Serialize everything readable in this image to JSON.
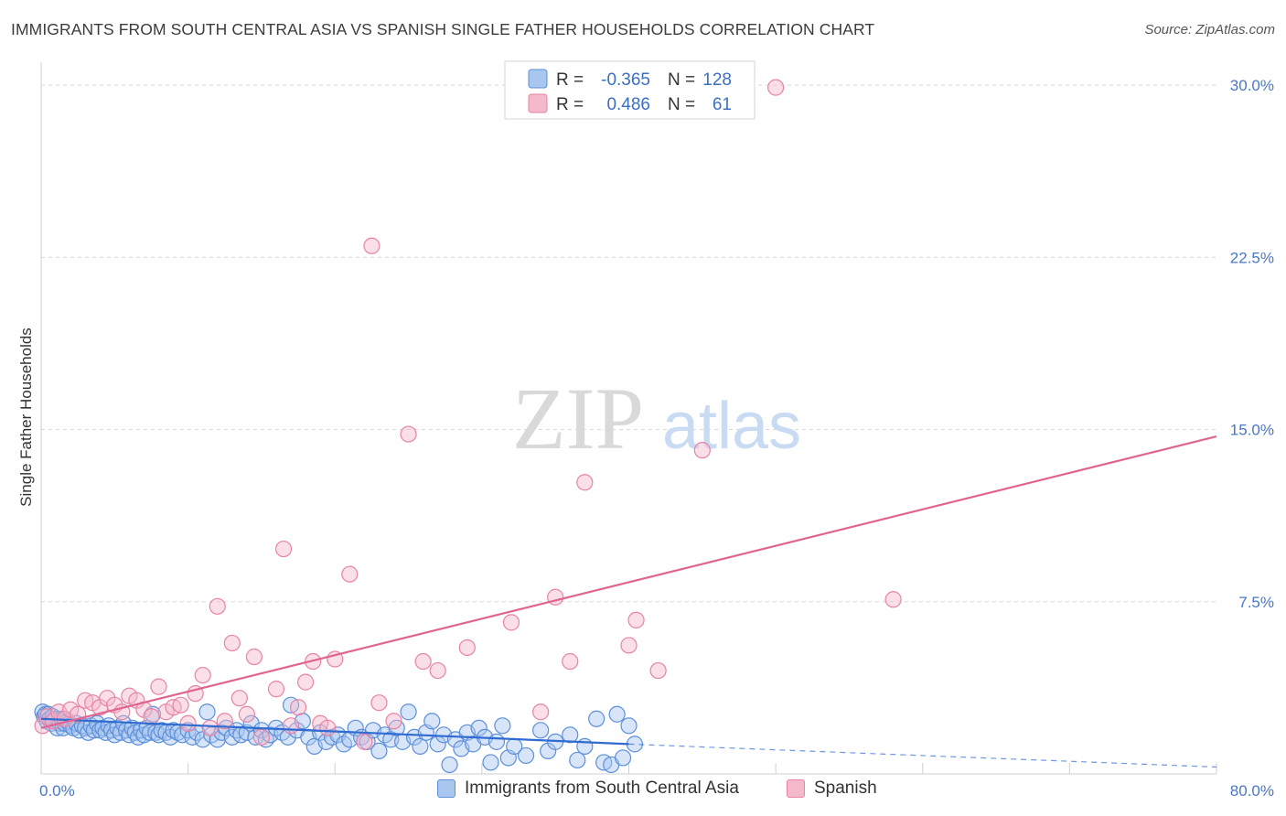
{
  "title": "IMMIGRANTS FROM SOUTH CENTRAL ASIA VS SPANISH SINGLE FATHER HOUSEHOLDS CORRELATION CHART",
  "source": "Source: ZipAtlas.com",
  "watermark": {
    "zip": "ZIP",
    "atlas": "atlas"
  },
  "colors": {
    "blue_fill": "#a9c6ef",
    "blue_stroke": "#5b8fd9",
    "blue_line": "#2f6bd1",
    "pink_fill": "#f5b9cc",
    "pink_stroke": "#e883a4",
    "pink_line": "#e0648f",
    "grid": "#d8d8d8",
    "tick_text": "#4a77c4"
  },
  "legend_box": {
    "rows": [
      {
        "r_label": "R =",
        "r_value": "-0.365",
        "n_label": "N =",
        "n_value": "128"
      },
      {
        "r_label": "R =",
        "r_value": "0.486",
        "n_label": "N =",
        "n_value": "61"
      }
    ]
  },
  "chart_data": {
    "type": "scatter",
    "title": "IMMIGRANTS FROM SOUTH CENTRAL ASIA VS SPANISH SINGLE FATHER HOUSEHOLDS CORRELATION CHART",
    "xlabel": "",
    "ylabel": "Single Father Households",
    "xlim": [
      0,
      80
    ],
    "ylim": [
      0,
      31
    ],
    "x_tick_labels": [
      {
        "value": 0,
        "label": "0.0%"
      },
      {
        "value": 80,
        "label": "80.0%"
      }
    ],
    "y_ticks": [
      {
        "value": 7.5,
        "label": "7.5%"
      },
      {
        "value": 15.0,
        "label": "15.0%"
      },
      {
        "value": 22.5,
        "label": "22.5%"
      },
      {
        "value": 30.0,
        "label": "30.0%"
      }
    ],
    "legend": [
      "Immigrants from South Central Asia",
      "Spanish"
    ],
    "series": [
      {
        "name": "Immigrants from South Central Asia",
        "R": -0.365,
        "N": 128,
        "trend": {
          "x0": 0,
          "y0": 2.4,
          "x1": 40,
          "y1": 1.3,
          "dash_x1": 80,
          "dash_y1": 0.3
        },
        "points": [
          [
            0.1,
            2.7
          ],
          [
            0.2,
            2.5
          ],
          [
            0.3,
            2.6
          ],
          [
            0.4,
            2.3
          ],
          [
            0.5,
            2.6
          ],
          [
            0.6,
            2.4
          ],
          [
            0.7,
            2.2
          ],
          [
            0.8,
            2.5
          ],
          [
            0.9,
            2.3
          ],
          [
            1.0,
            2.4
          ],
          [
            1.1,
            2.0
          ],
          [
            1.2,
            2.3
          ],
          [
            1.3,
            2.2
          ],
          [
            1.4,
            2.4
          ],
          [
            1.5,
            2.0
          ],
          [
            1.6,
            2.2
          ],
          [
            1.8,
            2.3
          ],
          [
            2.0,
            2.1
          ],
          [
            2.2,
            2.0
          ],
          [
            2.4,
            2.2
          ],
          [
            2.6,
            1.9
          ],
          [
            2.8,
            2.1
          ],
          [
            3.0,
            2.0
          ],
          [
            3.2,
            1.8
          ],
          [
            3.4,
            2.1
          ],
          [
            3.6,
            1.9
          ],
          [
            3.8,
            2.2
          ],
          [
            4.0,
            1.9
          ],
          [
            4.2,
            2.0
          ],
          [
            4.4,
            1.8
          ],
          [
            4.6,
            2.1
          ],
          [
            4.8,
            1.9
          ],
          [
            5.0,
            1.7
          ],
          [
            5.2,
            2.0
          ],
          [
            5.4,
            1.8
          ],
          [
            5.6,
            2.2
          ],
          [
            5.8,
            1.9
          ],
          [
            6.0,
            1.7
          ],
          [
            6.2,
            2.0
          ],
          [
            6.4,
            1.8
          ],
          [
            6.6,
            1.6
          ],
          [
            6.8,
            1.9
          ],
          [
            7.0,
            1.7
          ],
          [
            7.2,
            2.0
          ],
          [
            7.4,
            1.8
          ],
          [
            7.6,
            2.6
          ],
          [
            7.8,
            1.8
          ],
          [
            8.0,
            1.7
          ],
          [
            8.2,
            1.9
          ],
          [
            8.5,
            1.8
          ],
          [
            8.8,
            1.6
          ],
          [
            9.0,
            1.9
          ],
          [
            9.3,
            1.8
          ],
          [
            9.6,
            1.7
          ],
          [
            10.0,
            1.9
          ],
          [
            10.3,
            1.6
          ],
          [
            10.6,
            1.8
          ],
          [
            11.0,
            1.5
          ],
          [
            11.3,
            2.7
          ],
          [
            11.6,
            1.7
          ],
          [
            12.0,
            1.5
          ],
          [
            12.3,
            1.8
          ],
          [
            12.6,
            2.0
          ],
          [
            13.0,
            1.6
          ],
          [
            13.3,
            1.9
          ],
          [
            13.6,
            1.7
          ],
          [
            14.0,
            1.8
          ],
          [
            14.3,
            2.2
          ],
          [
            14.6,
            1.6
          ],
          [
            15.0,
            1.9
          ],
          [
            15.3,
            1.5
          ],
          [
            15.6,
            1.7
          ],
          [
            16.0,
            2.0
          ],
          [
            16.4,
            1.8
          ],
          [
            16.8,
            1.6
          ],
          [
            17.0,
            3.0
          ],
          [
            17.4,
            1.9
          ],
          [
            17.8,
            2.3
          ],
          [
            18.2,
            1.6
          ],
          [
            18.6,
            1.2
          ],
          [
            19.0,
            1.8
          ],
          [
            19.4,
            1.4
          ],
          [
            19.8,
            1.6
          ],
          [
            20.2,
            1.7
          ],
          [
            20.6,
            1.3
          ],
          [
            21.0,
            1.5
          ],
          [
            21.4,
            2.0
          ],
          [
            21.8,
            1.6
          ],
          [
            22.2,
            1.4
          ],
          [
            22.6,
            1.9
          ],
          [
            23.0,
            1.0
          ],
          [
            23.4,
            1.7
          ],
          [
            23.8,
            1.5
          ],
          [
            24.2,
            2.0
          ],
          [
            24.6,
            1.4
          ],
          [
            25.0,
            2.7
          ],
          [
            25.4,
            1.6
          ],
          [
            25.8,
            1.2
          ],
          [
            26.2,
            1.8
          ],
          [
            26.6,
            2.3
          ],
          [
            27.0,
            1.3
          ],
          [
            27.4,
            1.7
          ],
          [
            27.8,
            0.4
          ],
          [
            28.2,
            1.5
          ],
          [
            28.6,
            1.1
          ],
          [
            29.0,
            1.8
          ],
          [
            29.4,
            1.3
          ],
          [
            29.8,
            2.0
          ],
          [
            30.2,
            1.6
          ],
          [
            30.6,
            0.5
          ],
          [
            31.0,
            1.4
          ],
          [
            31.4,
            2.1
          ],
          [
            31.8,
            0.7
          ],
          [
            32.2,
            1.2
          ],
          [
            33.0,
            0.8
          ],
          [
            34.0,
            1.9
          ],
          [
            34.5,
            1.0
          ],
          [
            35.0,
            1.4
          ],
          [
            36.0,
            1.7
          ],
          [
            36.5,
            0.6
          ],
          [
            37.0,
            1.2
          ],
          [
            37.8,
            2.4
          ],
          [
            38.3,
            0.5
          ],
          [
            38.8,
            0.4
          ],
          [
            39.2,
            2.6
          ],
          [
            39.6,
            0.7
          ],
          [
            40.0,
            2.1
          ],
          [
            40.4,
            1.3
          ]
        ]
      },
      {
        "name": "Spanish",
        "R": 0.486,
        "N": 61,
        "trend": {
          "x0": 0,
          "y0": 2.0,
          "x1": 80,
          "y1": 14.7
        },
        "points": [
          [
            0.1,
            2.1
          ],
          [
            0.4,
            2.5
          ],
          [
            0.8,
            2.3
          ],
          [
            1.2,
            2.7
          ],
          [
            1.6,
            2.4
          ],
          [
            2.0,
            2.8
          ],
          [
            2.5,
            2.6
          ],
          [
            3.0,
            3.2
          ],
          [
            3.5,
            3.1
          ],
          [
            4.0,
            2.9
          ],
          [
            4.5,
            3.3
          ],
          [
            5.0,
            3.0
          ],
          [
            5.5,
            2.7
          ],
          [
            6.0,
            3.4
          ],
          [
            6.5,
            3.2
          ],
          [
            7.0,
            2.8
          ],
          [
            7.5,
            2.5
          ],
          [
            8.0,
            3.8
          ],
          [
            8.5,
            2.7
          ],
          [
            9.0,
            2.9
          ],
          [
            9.5,
            3.0
          ],
          [
            10.0,
            2.2
          ],
          [
            10.5,
            3.5
          ],
          [
            11.0,
            4.3
          ],
          [
            11.5,
            2.0
          ],
          [
            12.0,
            7.3
          ],
          [
            12.5,
            2.3
          ],
          [
            13.0,
            5.7
          ],
          [
            13.5,
            3.3
          ],
          [
            14.0,
            2.6
          ],
          [
            14.5,
            5.1
          ],
          [
            15.0,
            1.6
          ],
          [
            16.0,
            3.7
          ],
          [
            16.5,
            9.8
          ],
          [
            17.0,
            2.1
          ],
          [
            17.5,
            2.9
          ],
          [
            18.0,
            4.0
          ],
          [
            18.5,
            4.9
          ],
          [
            19.0,
            2.2
          ],
          [
            19.5,
            2.0
          ],
          [
            20.0,
            5.0
          ],
          [
            21.0,
            8.7
          ],
          [
            22.0,
            1.4
          ],
          [
            22.5,
            23.0
          ],
          [
            23.0,
            3.1
          ],
          [
            24.0,
            2.3
          ],
          [
            25.0,
            14.8
          ],
          [
            26.0,
            4.9
          ],
          [
            27.0,
            4.5
          ],
          [
            29.0,
            5.5
          ],
          [
            32.0,
            6.6
          ],
          [
            34.0,
            2.7
          ],
          [
            35.0,
            7.7
          ],
          [
            36.0,
            4.9
          ],
          [
            37.0,
            12.7
          ],
          [
            40.0,
            5.6
          ],
          [
            40.5,
            6.7
          ],
          [
            42.0,
            4.5
          ],
          [
            45.0,
            14.1
          ],
          [
            50.0,
            29.9
          ],
          [
            58.0,
            7.6
          ]
        ]
      }
    ]
  }
}
